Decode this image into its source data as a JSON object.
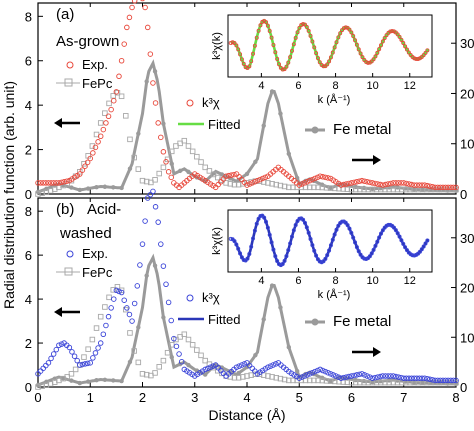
{
  "chart_data": {
    "type": "line",
    "xlabel": "Distance (Å)",
    "ylabel": "Radial distribution function (arb. unit)",
    "xlim": [
      0,
      8
    ],
    "x_ticks": [
      "0",
      "1",
      "2",
      "3",
      "4",
      "5",
      "6",
      "7",
      "8"
    ],
    "left_ylim": [
      0,
      8.6
    ],
    "left_y_ticks": [
      "0",
      "2",
      "4",
      "6",
      "8"
    ],
    "right_ylim": [
      0,
      38
    ],
    "right_y_ticks": [
      "0",
      "10",
      "20",
      "30"
    ],
    "panels": [
      {
        "label": "(a)",
        "sample": "As-grown",
        "legend": {
          "exp": "Exp.",
          "fepc": "FePc",
          "kchi": "k³χ",
          "fitted": "Fitted",
          "fe_metal": "Fe metal"
        },
        "exp_color": "#e8483b",
        "fitted_color": "#66dd44",
        "series": [
          {
            "name": "Exp.",
            "x": [
              0.0,
              0.2,
              0.4,
              0.6,
              0.8,
              1.0,
              1.2,
              1.4,
              1.5,
              1.6,
              1.7,
              1.8,
              1.9,
              2.0,
              2.05,
              2.1,
              2.15,
              2.2,
              2.3,
              2.4,
              2.5,
              2.6,
              2.7,
              2.8,
              3.0,
              3.2,
              3.4,
              3.6,
              3.8,
              4.0,
              4.2,
              4.4,
              4.6,
              4.8,
              5.0,
              5.2,
              5.4,
              5.6,
              5.8,
              6.0,
              6.2,
              6.4,
              6.6,
              6.8,
              7.0,
              7.2,
              7.4,
              7.6,
              7.8,
              8.0
            ],
            "y": [
              0.5,
              0.5,
              0.5,
              0.6,
              0.9,
              1.6,
              2.6,
              3.8,
              4.6,
              6.0,
              7.5,
              8.4,
              9.0,
              8.8,
              8.4,
              7.5,
              6.3,
              5.0,
              3.2,
              1.9,
              1.0,
              0.5,
              0.3,
              0.5,
              0.9,
              0.6,
              0.3,
              0.8,
              0.9,
              0.4,
              0.6,
              0.8,
              1.2,
              0.8,
              0.4,
              0.6,
              0.8,
              0.7,
              0.4,
              0.5,
              0.6,
              0.5,
              0.4,
              0.5,
              0.5,
              0.4,
              0.4,
              0.3,
              0.3,
              0.3
            ]
          },
          {
            "name": "FePc",
            "x": [
              0.0,
              0.2,
              0.4,
              0.6,
              0.8,
              1.0,
              1.2,
              1.4,
              1.5,
              1.6,
              1.7,
              1.8,
              2.0,
              2.2,
              2.4,
              2.6,
              2.8,
              3.0,
              3.2,
              3.4,
              3.6,
              3.8,
              4.0,
              4.2,
              4.4,
              4.6,
              4.8,
              5.0,
              5.4,
              6.0,
              6.6,
              7.2,
              8.0
            ],
            "y": [
              0.0,
              0.1,
              0.3,
              0.5,
              1.0,
              1.9,
              3.2,
              4.3,
              4.6,
              4.4,
              3.3,
              1.9,
              0.6,
              0.5,
              1.2,
              2.1,
              2.4,
              1.8,
              1.2,
              0.8,
              0.5,
              0.4,
              0.5,
              0.6,
              0.5,
              0.4,
              0.3,
              0.3,
              0.3,
              0.2,
              0.2,
              0.2,
              0.2
            ]
          },
          {
            "name": "Fe metal",
            "x": [
              0.0,
              0.4,
              0.8,
              1.2,
              1.6,
              1.8,
              2.0,
              2.1,
              2.2,
              2.3,
              2.4,
              2.6,
              2.8,
              3.0,
              3.2,
              3.4,
              3.6,
              3.8,
              4.0,
              4.2,
              4.4,
              4.5,
              4.6,
              4.8,
              5.0,
              5.2,
              5.4,
              5.6,
              5.8,
              6.0,
              6.4,
              6.8,
              7.2,
              7.6,
              8.0
            ],
            "y": [
              0.4,
              2.0,
              0.8,
              1.5,
              1.2,
              6.0,
              16.0,
              24.0,
              26.0,
              22.0,
              14.0,
              4.0,
              5.0,
              3.5,
              2.5,
              4.5,
              3.5,
              2.5,
              4.0,
              7.0,
              18.0,
              21.0,
              18.0,
              8.0,
              2.0,
              3.0,
              2.0,
              1.2,
              2.0,
              1.5,
              1.0,
              1.4,
              0.9,
              0.8,
              0.6
            ]
          }
        ],
        "inset": {
          "xlabel": "k (Å⁻¹)",
          "ylabel": "k³χ(k)",
          "x_ticks": [
            "4",
            "6",
            "8",
            "10",
            "12"
          ],
          "xlim": [
            2.2,
            13.2
          ],
          "amplitude": [
            4.0,
            1.7
          ],
          "period": [
            1.8,
            2.2
          ],
          "phase": 0.2
        }
      },
      {
        "label": "(b)",
        "sample": "Acid-washed",
        "legend": {
          "exp": "Exp.",
          "fepc": "FePc",
          "kchi": "k³χ",
          "fitted": "Fitted",
          "fe_metal": "Fe metal"
        },
        "exp_color": "#3a44d8",
        "fitted_color": "#2a36b8",
        "series": [
          {
            "name": "Exp.",
            "x": [
              0.0,
              0.2,
              0.4,
              0.5,
              0.6,
              0.8,
              1.0,
              1.2,
              1.4,
              1.5,
              1.6,
              1.7,
              1.8,
              1.9,
              2.0,
              2.1,
              2.2,
              2.3,
              2.4,
              2.6,
              2.8,
              3.0,
              3.2,
              3.4,
              3.6,
              3.8,
              4.0,
              4.2,
              4.4,
              4.6,
              4.8,
              5.0,
              5.2,
              5.4,
              5.6,
              5.8,
              6.0,
              6.2,
              6.4,
              6.6,
              6.8,
              7.0,
              7.2,
              7.4,
              7.6,
              7.8,
              8.0
            ],
            "y": [
              0.6,
              1.1,
              1.9,
              2.0,
              1.8,
              1.0,
              1.1,
              2.0,
              3.6,
              4.4,
              4.3,
              3.6,
              3.0,
              4.6,
              6.5,
              8.6,
              8.9,
              7.5,
              5.5,
              2.2,
              0.8,
              0.5,
              0.8,
              1.0,
              0.5,
              0.9,
              1.1,
              0.6,
              0.9,
              1.1,
              0.7,
              0.4,
              0.6,
              0.8,
              0.6,
              0.4,
              0.5,
              0.6,
              0.4,
              0.5,
              0.5,
              0.4,
              0.4,
              0.4,
              0.3,
              0.3,
              0.3
            ]
          },
          {
            "name": "FePc",
            "x": [
              0.0,
              0.2,
              0.4,
              0.6,
              0.8,
              1.0,
              1.2,
              1.4,
              1.5,
              1.6,
              1.7,
              1.8,
              2.0,
              2.2,
              2.4,
              2.6,
              2.8,
              3.0,
              3.2,
              3.4,
              3.6,
              3.8,
              4.0,
              4.2,
              4.4,
              4.6,
              4.8,
              5.0,
              5.4,
              6.0,
              6.6,
              7.2,
              8.0
            ],
            "y": [
              0.0,
              0.1,
              0.3,
              0.5,
              1.0,
              1.9,
              3.2,
              4.3,
              4.6,
              4.4,
              3.3,
              1.9,
              0.6,
              0.5,
              1.2,
              2.1,
              2.4,
              1.8,
              1.2,
              0.8,
              0.5,
              0.4,
              0.5,
              0.6,
              0.5,
              0.4,
              0.3,
              0.3,
              0.3,
              0.2,
              0.2,
              0.2,
              0.2
            ]
          },
          {
            "name": "Fe metal",
            "x": [
              0.0,
              0.4,
              0.8,
              1.2,
              1.6,
              1.8,
              2.0,
              2.1,
              2.2,
              2.3,
              2.4,
              2.6,
              2.8,
              3.0,
              3.2,
              3.4,
              3.6,
              3.8,
              4.0,
              4.2,
              4.4,
              4.5,
              4.6,
              4.8,
              5.0,
              5.2,
              5.4,
              5.6,
              5.8,
              6.0,
              6.4,
              6.8,
              7.2,
              7.6,
              8.0
            ],
            "y": [
              0.4,
              2.0,
              0.8,
              1.5,
              1.2,
              6.0,
              16.0,
              24.0,
              26.0,
              22.0,
              14.0,
              4.0,
              5.0,
              3.5,
              2.5,
              4.5,
              3.5,
              2.5,
              4.0,
              7.0,
              18.0,
              21.0,
              18.0,
              8.0,
              2.0,
              3.0,
              2.0,
              1.2,
              2.0,
              1.5,
              1.0,
              1.4,
              0.9,
              0.8,
              0.6
            ]
          }
        ],
        "inset": {
          "xlabel": "k (Å⁻¹)",
          "ylabel": "k³χ(k)",
          "x_ticks": [
            "4",
            "6",
            "8",
            "10",
            "12"
          ],
          "xlim": [
            2.2,
            13.2
          ],
          "amplitude": [
            3.4,
            1.6
          ],
          "period": [
            1.8,
            2.2
          ],
          "phase": 0.6
        }
      }
    ]
  }
}
